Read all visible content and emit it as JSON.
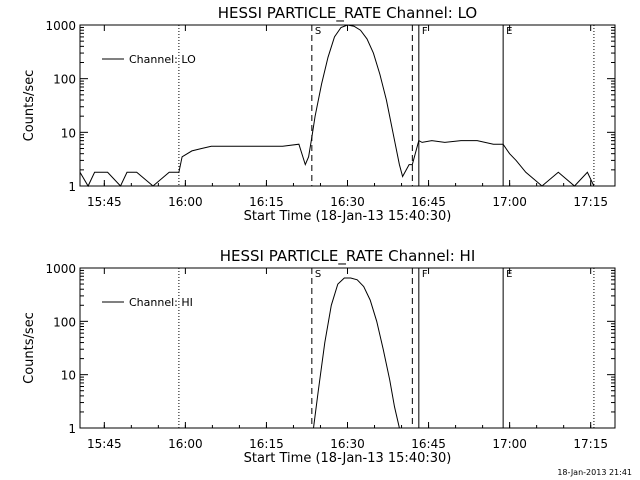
{
  "footer": {
    "timestamp": "18-Jan-2013 21:41"
  },
  "chart_data": [
    {
      "type": "line",
      "title": "HESSI PARTICLE_RATE Channel: LO",
      "xlabel": "Start Time (18-Jan-13 15:40:30)",
      "ylabel": "Counts/sec",
      "yscale": "log",
      "ylim": [
        1,
        1000
      ],
      "xlim": [
        15.675,
        17.325
      ],
      "x_ticks": [
        {
          "x": 15.75,
          "label": "15:45"
        },
        {
          "x": 16.0,
          "label": "16:00"
        },
        {
          "x": 16.25,
          "label": "16:15"
        },
        {
          "x": 16.5,
          "label": "16:30"
        },
        {
          "x": 16.75,
          "label": "16:45"
        },
        {
          "x": 17.0,
          "label": "17:00"
        },
        {
          "x": 17.25,
          "label": "17:15"
        }
      ],
      "y_ticks": [
        {
          "y": 1,
          "label": "1"
        },
        {
          "y": 10,
          "label": "10"
        },
        {
          "y": 100,
          "label": "100"
        },
        {
          "y": 1000,
          "label": "1000"
        }
      ],
      "legend": {
        "position": "top-left",
        "entries": [
          "Channel: LO"
        ]
      },
      "markers": [
        {
          "x": 15.98,
          "style": "dotted",
          "label": ""
        },
        {
          "x": 16.39,
          "style": "dashed",
          "label": "S"
        },
        {
          "x": 16.7,
          "style": "dashed",
          "label": ""
        },
        {
          "x": 16.72,
          "style": "solid",
          "label": "F"
        },
        {
          "x": 16.98,
          "style": "solid",
          "label": "E"
        },
        {
          "x": 17.26,
          "style": "dotted",
          "label": ""
        }
      ],
      "series": [
        {
          "x": [
            15.675,
            15.7,
            15.72,
            15.76,
            15.8,
            15.82,
            15.85,
            15.9,
            15.95,
            15.98,
            15.99,
            16.02,
            16.05,
            16.08,
            16.12,
            16.15,
            16.2,
            16.25,
            16.3,
            16.35,
            16.37,
            16.38,
            16.39,
            16.4,
            16.42,
            16.44,
            16.46,
            16.48,
            16.5,
            16.52,
            16.54,
            16.56,
            16.58,
            16.6,
            16.62,
            16.64,
            16.66,
            16.67,
            16.69,
            16.7,
            16.72,
            16.73,
            16.76,
            16.8,
            16.85,
            16.9,
            16.95,
            16.98,
            17.0,
            17.02,
            17.05,
            17.1,
            17.15,
            17.2,
            17.24,
            17.26
          ],
          "y": [
            1.8,
            1.0,
            1.8,
            1.8,
            1.0,
            1.8,
            1.8,
            1.0,
            1.8,
            1.8,
            3.5,
            4.5,
            5.0,
            5.5,
            5.5,
            5.5,
            5.5,
            5.5,
            5.5,
            6.0,
            2.5,
            3.5,
            8.0,
            20,
            80,
            250,
            600,
            900,
            1000,
            950,
            800,
            550,
            300,
            120,
            40,
            10,
            2.5,
            1.5,
            2.5,
            2.5,
            7.0,
            6.5,
            7.0,
            6.5,
            7.0,
            7.0,
            6.0,
            6.0,
            4.0,
            3.0,
            1.8,
            1.0,
            1.8,
            1.0,
            1.8,
            1.0
          ]
        }
      ]
    },
    {
      "type": "line",
      "title": "HESSI PARTICLE_RATE Channel: HI",
      "xlabel": "Start Time (18-Jan-13 15:40:30)",
      "ylabel": "Counts/sec",
      "yscale": "log",
      "ylim": [
        1,
        1000
      ],
      "xlim": [
        15.675,
        17.325
      ],
      "x_ticks": [
        {
          "x": 15.75,
          "label": "15:45"
        },
        {
          "x": 16.0,
          "label": "16:00"
        },
        {
          "x": 16.25,
          "label": "16:15"
        },
        {
          "x": 16.5,
          "label": "16:30"
        },
        {
          "x": 16.75,
          "label": "16:45"
        },
        {
          "x": 17.0,
          "label": "17:00"
        },
        {
          "x": 17.25,
          "label": "17:15"
        }
      ],
      "y_ticks": [
        {
          "y": 1,
          "label": "1"
        },
        {
          "y": 10,
          "label": "10"
        },
        {
          "y": 100,
          "label": "100"
        },
        {
          "y": 1000,
          "label": "1000"
        }
      ],
      "legend": {
        "position": "top-left",
        "entries": [
          "Channel: HI"
        ]
      },
      "markers": [
        {
          "x": 15.98,
          "style": "dotted",
          "label": ""
        },
        {
          "x": 16.39,
          "style": "dashed",
          "label": "S"
        },
        {
          "x": 16.7,
          "style": "dashed",
          "label": ""
        },
        {
          "x": 16.72,
          "style": "solid",
          "label": "F"
        },
        {
          "x": 16.98,
          "style": "solid",
          "label": "E"
        },
        {
          "x": 17.26,
          "style": "dotted",
          "label": ""
        }
      ],
      "series": [
        {
          "x": [
            16.395,
            16.41,
            16.43,
            16.45,
            16.47,
            16.49,
            16.51,
            16.53,
            16.55,
            16.57,
            16.59,
            16.61,
            16.63,
            16.645,
            16.66
          ],
          "y": [
            1.0,
            5,
            40,
            200,
            500,
            650,
            650,
            600,
            450,
            250,
            100,
            30,
            8,
            2.5,
            1.0
          ]
        }
      ]
    }
  ]
}
